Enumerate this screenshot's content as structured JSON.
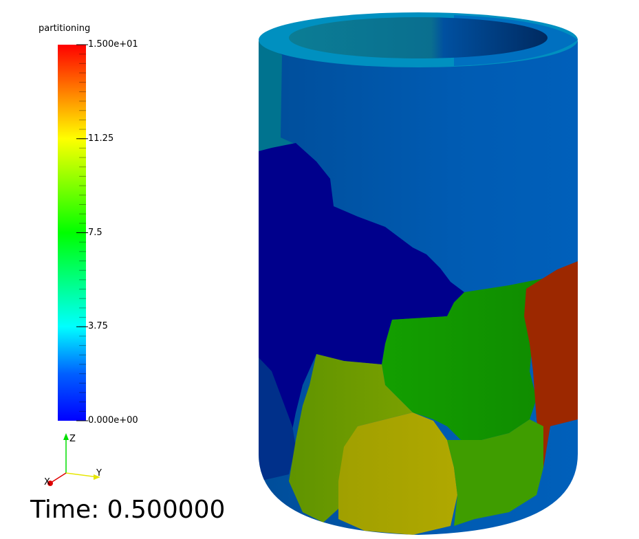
{
  "legend": {
    "title": "partitioning",
    "ticks": [
      {
        "label": "1.500e+01",
        "value": 15
      },
      {
        "label": "11.25",
        "value": 11.25
      },
      {
        "label": "7.5",
        "value": 7.5
      },
      {
        "label": "3.75",
        "value": 3.75
      },
      {
        "label": "0.000e+00",
        "value": 0
      }
    ],
    "range": [
      0,
      15
    ],
    "colormap": [
      "#0000ff",
      "#0080ff",
      "#00ffff",
      "#00ff80",
      "#00ff00",
      "#80ff00",
      "#ffff00",
      "#ff8000",
      "#ff0000"
    ]
  },
  "axes": {
    "x_label": "X",
    "y_label": "Y",
    "z_label": "Z",
    "x_color": "#ff0000",
    "y_color": "#ffff00",
    "z_color": "#00ff00"
  },
  "time": {
    "label": "Time: 0.500000"
  },
  "model": {
    "description_colors": {
      "top_band": "#005bb2",
      "navy_region": "#00008c",
      "green_region": "#109a00",
      "olive_region": "#6e9a00",
      "yellow_region": "#a8a400",
      "red_region": "#a02000",
      "teal_region": "#00738f",
      "rim": "#0090c0"
    }
  }
}
